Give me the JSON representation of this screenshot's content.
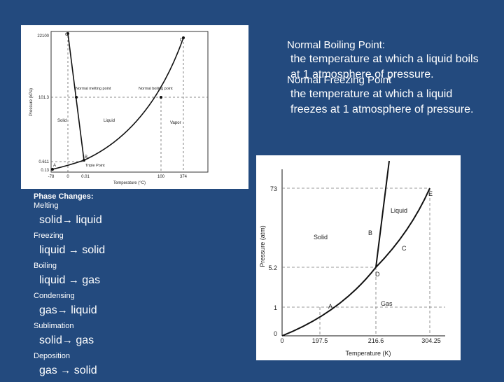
{
  "definitions": {
    "boiling_title": "Normal Boiling Point:",
    "boiling_text": "the temperature at which a liquid boils at 1 atmosphere of pressure.",
    "freezing_title": "Normal Freezing Point",
    "freezing_text": "the temperature at which a liquid freezes at 1 atmosphere of pressure."
  },
  "phase_changes": {
    "title": "Phase Changes:",
    "arrow": "→",
    "items": [
      {
        "name": "Melting",
        "from": "solid",
        "to": "liquid"
      },
      {
        "name": "Freezing",
        "from": "liquid",
        "to": "solid"
      },
      {
        "name": "Boiling",
        "from": "liquid",
        "to": "gas"
      },
      {
        "name": "Condensing",
        "from": "gas",
        "to": "liquid"
      },
      {
        "name": "Sublimation",
        "from": "solid",
        "to": "gas"
      },
      {
        "name": "Deposition",
        "from": "gas",
        "to": "solid"
      }
    ]
  },
  "chart_data": [
    {
      "type": "line",
      "xlabel": "Temperature (°C)",
      "ylabel": "Pressure (kPa)",
      "y_ticks": [
        "22100",
        "101.3",
        "0.611",
        "0.13"
      ],
      "x_ticks": [
        "-78",
        "0",
        "0.01",
        "100",
        "374"
      ],
      "regions": [
        "Solid",
        "Liquid",
        "Vapor"
      ],
      "annotations": [
        "Normal melting point",
        "Normal boiling point",
        "Triple Point"
      ],
      "point_labels": [
        "A",
        "B",
        "C",
        "D"
      ]
    },
    {
      "type": "line",
      "xlabel": "Temperature (K)",
      "ylabel": "Pressure (atm)",
      "y_ticks": [
        "73",
        "5.2",
        "1",
        "0"
      ],
      "x_ticks": [
        "0",
        "197.5",
        "216.6",
        "304.25"
      ],
      "regions": [
        "Liquid",
        "Solid",
        "Gas"
      ],
      "point_labels": [
        "A",
        "B",
        "C",
        "D",
        "E"
      ],
      "points": [
        {
          "label": "D",
          "x": 216.6,
          "y": 5.2
        },
        {
          "label": "E",
          "x": 304.25,
          "y": 73
        },
        {
          "label": "A",
          "x": 197.5,
          "y": 1
        }
      ]
    }
  ]
}
